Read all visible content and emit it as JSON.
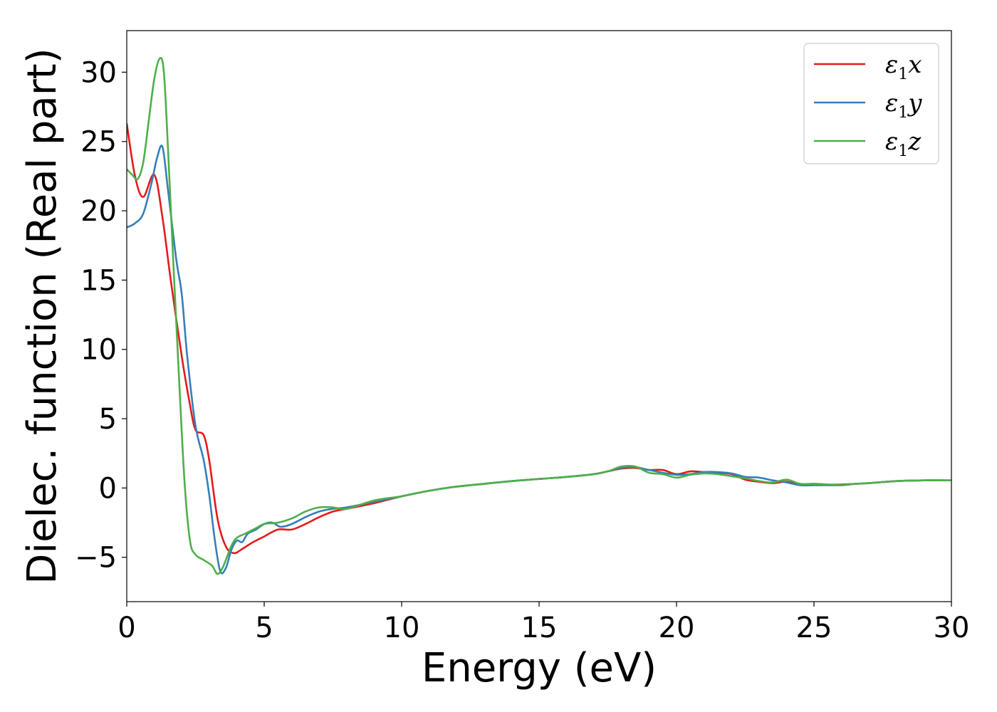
{
  "chart_data": {
    "type": "line",
    "xlabel": "Energy (eV)",
    "ylabel": "Dielec. function (Real part)",
    "xlim": [
      0,
      30
    ],
    "ylim": [
      -8.2,
      33
    ],
    "xticks": [
      0,
      5,
      10,
      15,
      20,
      25,
      30
    ],
    "xtick_labels": [
      "0",
      "5",
      "10",
      "15",
      "20",
      "25",
      "30"
    ],
    "yticks": [
      -5,
      0,
      5,
      10,
      15,
      20,
      25,
      30
    ],
    "ytick_labels": [
      "−5",
      "0",
      "5",
      "10",
      "15",
      "20",
      "25",
      "30"
    ],
    "grid": false,
    "legend_position": "top-right",
    "series": [
      {
        "name": "ε₁x",
        "legend_main": "ε",
        "legend_sub": "1",
        "legend_tail": "x",
        "color": "#e41a1c",
        "x": [
          0,
          0.3,
          0.6,
          1.0,
          1.3,
          1.6,
          2.0,
          2.3,
          2.5,
          2.8,
          3.0,
          3.3,
          3.6,
          3.9,
          4.2,
          4.6,
          5.0,
          5.5,
          6.0,
          6.5,
          7.0,
          7.5,
          8.0,
          9.0,
          10.0,
          11.0,
          12.0,
          13.0,
          14.0,
          15.0,
          16.0,
          17.0,
          17.5,
          18.0,
          18.5,
          19.0,
          19.5,
          20.0,
          20.5,
          21.0,
          21.5,
          22.0,
          22.5,
          23.0,
          23.5,
          24.0,
          24.5,
          25.0,
          25.5,
          26.0,
          26.5,
          27.0,
          28.0,
          29.0,
          30.0
        ],
        "y": [
          26.3,
          22.5,
          21.0,
          22.6,
          19.5,
          15.0,
          9.5,
          6.0,
          4.2,
          3.8,
          2.0,
          -2.2,
          -4.2,
          -4.7,
          -4.4,
          -3.9,
          -3.5,
          -3.0,
          -3.0,
          -2.6,
          -2.1,
          -1.7,
          -1.5,
          -1.1,
          -0.6,
          -0.2,
          0.1,
          0.3,
          0.5,
          0.65,
          0.8,
          1.0,
          1.2,
          1.4,
          1.45,
          1.3,
          1.3,
          1.0,
          1.2,
          1.15,
          1.1,
          1.0,
          0.6,
          0.45,
          0.35,
          0.45,
          0.25,
          0.3,
          0.25,
          0.25,
          0.3,
          0.35,
          0.5,
          0.55,
          0.55
        ]
      },
      {
        "name": "ε₁y",
        "legend_main": "ε",
        "legend_sub": "1",
        "legend_tail": "y",
        "color": "#377eb8",
        "x": [
          0,
          0.3,
          0.6,
          0.9,
          1.1,
          1.3,
          1.5,
          1.8,
          2.0,
          2.2,
          2.5,
          2.8,
          3.0,
          3.2,
          3.4,
          3.6,
          3.8,
          4.0,
          4.2,
          4.4,
          4.7,
          5.0,
          5.3,
          5.6,
          6.0,
          6.5,
          7.0,
          7.5,
          8.0,
          9.0,
          10.0,
          11.0,
          12.0,
          13.0,
          14.0,
          15.0,
          16.0,
          17.0,
          17.5,
          18.0,
          18.5,
          19.0,
          19.5,
          20.0,
          20.5,
          21.0,
          21.5,
          22.0,
          22.5,
          23.0,
          23.5,
          24.0,
          24.5,
          25.0,
          25.5,
          26.0,
          26.5,
          27.0,
          28.0,
          29.0,
          30.0
        ],
        "y": [
          18.8,
          19.1,
          19.8,
          22.0,
          23.8,
          24.6,
          21.5,
          16.5,
          14.0,
          9.5,
          4.5,
          2.0,
          -0.5,
          -3.7,
          -6.0,
          -5.8,
          -4.5,
          -3.8,
          -3.9,
          -3.3,
          -3.0,
          -2.6,
          -2.5,
          -2.8,
          -2.6,
          -2.1,
          -1.7,
          -1.5,
          -1.4,
          -1.0,
          -0.6,
          -0.2,
          0.1,
          0.3,
          0.5,
          0.65,
          0.8,
          1.0,
          1.2,
          1.45,
          1.5,
          1.3,
          1.1,
          0.95,
          1.0,
          1.15,
          1.15,
          1.05,
          0.8,
          0.75,
          0.55,
          0.4,
          0.2,
          0.2,
          0.2,
          0.2,
          0.3,
          0.35,
          0.5,
          0.55,
          0.55
        ]
      },
      {
        "name": "ε₁z",
        "legend_main": "ε",
        "legend_sub": "1",
        "legend_tail": "z",
        "color": "#4daf4a",
        "x": [
          0,
          0.2,
          0.4,
          0.6,
          0.8,
          1.0,
          1.2,
          1.35,
          1.5,
          1.7,
          1.9,
          2.1,
          2.3,
          2.5,
          2.8,
          3.1,
          3.3,
          3.5,
          3.8,
          4.0,
          4.3,
          4.7,
          5.0,
          5.5,
          6.0,
          6.5,
          7.0,
          7.5,
          8.0,
          9.0,
          10.0,
          11.0,
          12.0,
          13.0,
          14.0,
          15.0,
          16.0,
          17.0,
          17.5,
          18.0,
          18.5,
          19.0,
          19.5,
          20.0,
          20.5,
          21.0,
          21.5,
          22.0,
          22.5,
          23.0,
          23.5,
          24.0,
          24.5,
          25.0,
          25.5,
          26.0,
          26.5,
          27.0,
          28.0,
          29.0,
          30.0
        ],
        "y": [
          23.0,
          22.6,
          22.3,
          23.5,
          26.5,
          29.5,
          31.0,
          30.0,
          24.5,
          16.0,
          8.0,
          0.5,
          -3.8,
          -4.8,
          -5.2,
          -5.6,
          -6.2,
          -5.7,
          -4.2,
          -3.6,
          -3.3,
          -2.9,
          -2.6,
          -2.5,
          -2.2,
          -1.7,
          -1.4,
          -1.4,
          -1.5,
          -0.9,
          -0.6,
          -0.2,
          0.1,
          0.3,
          0.5,
          0.65,
          0.8,
          1.0,
          1.2,
          1.55,
          1.55,
          1.1,
          1.0,
          0.75,
          0.95,
          1.05,
          1.0,
          0.85,
          0.7,
          0.5,
          0.4,
          0.6,
          0.3,
          0.3,
          0.25,
          0.2,
          0.3,
          0.35,
          0.5,
          0.55,
          0.55
        ]
      }
    ]
  }
}
